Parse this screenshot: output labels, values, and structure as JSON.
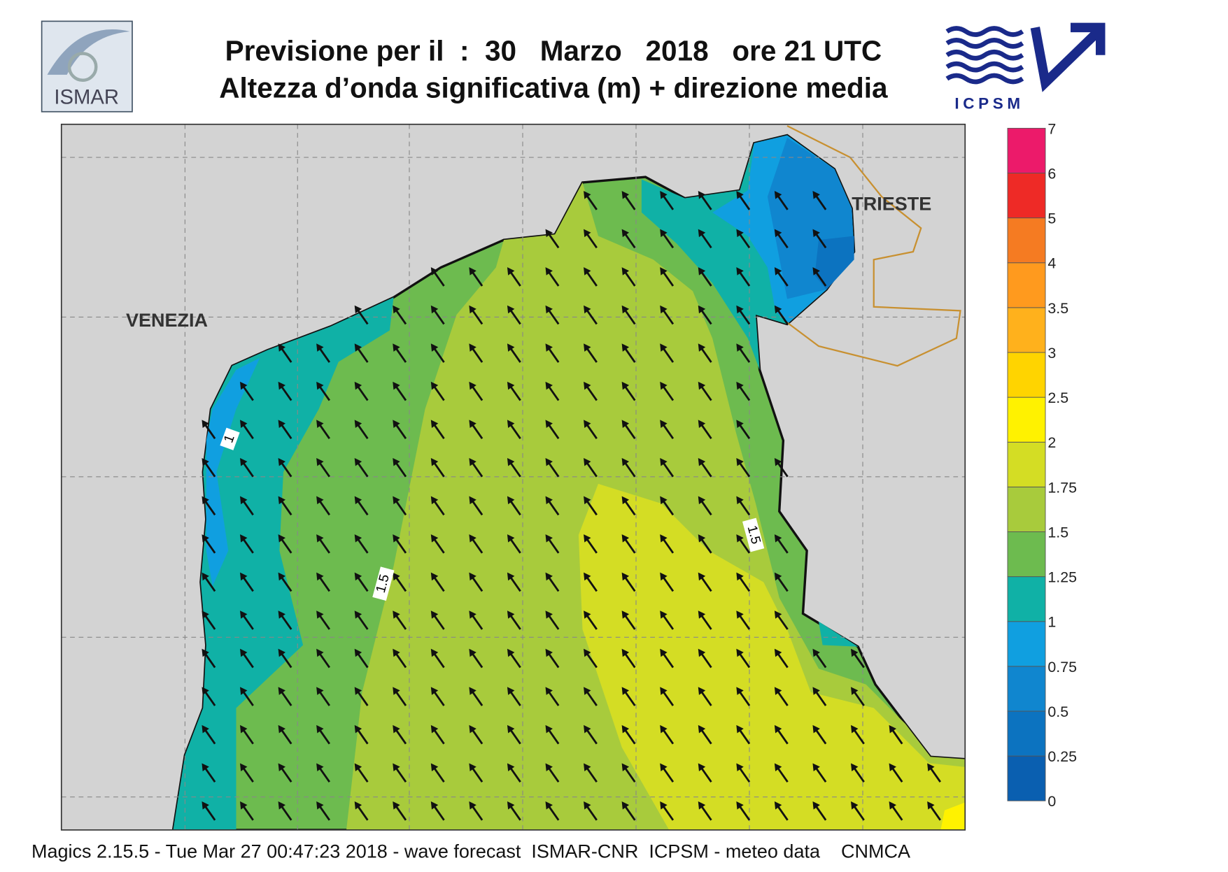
{
  "header": {
    "title": "Previsione per il  :  30   Marzo   2018   ore 21 UTC",
    "subtitle": "Altezza d’onda significativa (m) + direzione media",
    "left_logo": "ISMAR",
    "right_logo": "ICPSM"
  },
  "map": {
    "places": [
      "VENEZIA",
      "TRIESTE"
    ],
    "contour_labels": [
      "1",
      "1.5",
      "1.5"
    ]
  },
  "colorbar": {
    "ticks": [
      "0",
      "0.25",
      "0.5",
      "0.75",
      "1",
      "1.25",
      "1.5",
      "1.75",
      "2",
      "2.5",
      "3",
      "3.5",
      "4",
      "5",
      "6",
      "7"
    ],
    "colors": [
      "#0a5fb0",
      "#0c73c0",
      "#1086cf",
      "#109fe0",
      "#10b1a6",
      "#6dbb4f",
      "#a8cb3c",
      "#d4dd24",
      "#fff200",
      "#ffd400",
      "#ffb11c",
      "#ff9a1e",
      "#f57b22",
      "#ee2a26",
      "#ec1a6a"
    ]
  },
  "footer": "Magics 2.15.5 - Tue Mar 27 00:47:23 2018 - wave forecast  ISMAR-CNR  ICPSM - meteo data    CNMCA"
}
